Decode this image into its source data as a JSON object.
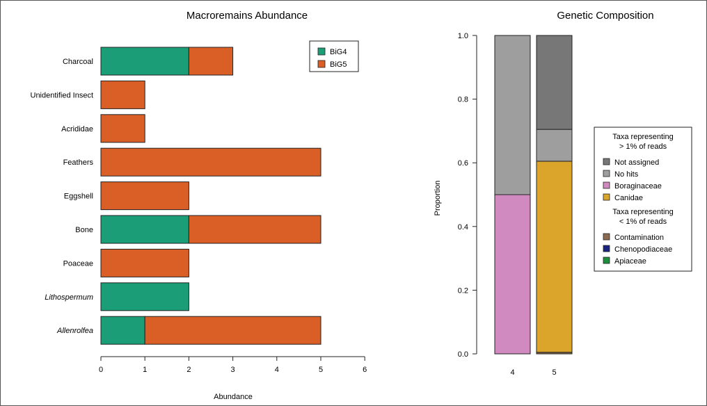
{
  "chart_data": [
    {
      "type": "bar",
      "orientation": "horizontal",
      "stacked": true,
      "title": "Macroremains Abundance",
      "xlabel": "Abundance",
      "ylabel": "",
      "xlim": [
        0,
        6
      ],
      "xticks": [
        "0",
        "1",
        "2",
        "3",
        "4",
        "5",
        "6"
      ],
      "categories": [
        "Charcoal",
        "Unidentified Insect",
        "Acrididae",
        "Feathers",
        "Eggshell",
        "Bone",
        "Poaceae",
        "Lithospermum",
        "Allenrolfea"
      ],
      "italic_categories": [
        "Lithospermum",
        "Allenrolfea"
      ],
      "series": [
        {
          "name": "BiG4",
          "color": "#1b9e77",
          "values": [
            2,
            0,
            0,
            0,
            0,
            2,
            0,
            2,
            1
          ]
        },
        {
          "name": "BiG5",
          "color": "#d95f27",
          "values": [
            1,
            1,
            1,
            5,
            2,
            3,
            2,
            0,
            4
          ]
        }
      ],
      "grid": false,
      "legend_position": "top-right"
    },
    {
      "type": "bar",
      "orientation": "vertical",
      "stacked": true,
      "title": "Genetic Composition",
      "xlabel": "",
      "ylabel": "Proportion",
      "ylim": [
        0,
        1
      ],
      "yticks": [
        "0.0",
        "0.2",
        "0.4",
        "0.6",
        "0.8",
        "1.0"
      ],
      "categories": [
        "4",
        "5"
      ],
      "series": [
        {
          "name": "Apiaceae",
          "color": "#1e8e3e",
          "values": [
            0,
            0
          ]
        },
        {
          "name": "Chenopodiaceae",
          "color": "#1a237e",
          "values": [
            0,
            0
          ]
        },
        {
          "name": "Contamination",
          "color": "#8b6a4f",
          "values": [
            0,
            0.005
          ]
        },
        {
          "name": "Canidae",
          "color": "#daa52a",
          "values": [
            0,
            0.6
          ]
        },
        {
          "name": "Boraginaceae",
          "color": "#d08ac0",
          "values": [
            0.5,
            0
          ]
        },
        {
          "name": "No hits",
          "color": "#9e9e9e",
          "values": [
            0.5,
            0.1
          ]
        },
        {
          "name": "Not assigned",
          "color": "#777777",
          "values": [
            0,
            0.295
          ]
        }
      ],
      "grid": false,
      "legend_position": "right",
      "legend_groups": [
        {
          "heading": [
            "Taxa representing",
            "> 1% of reads"
          ],
          "entries": [
            "Not assigned",
            "No hits",
            "Boraginaceae",
            "Canidae"
          ]
        },
        {
          "heading": [
            "Taxa representing",
            "< 1% of reads"
          ],
          "entries": [
            "Contamination",
            "Chenopodiaceae",
            "Apiaceae"
          ]
        }
      ]
    }
  ]
}
